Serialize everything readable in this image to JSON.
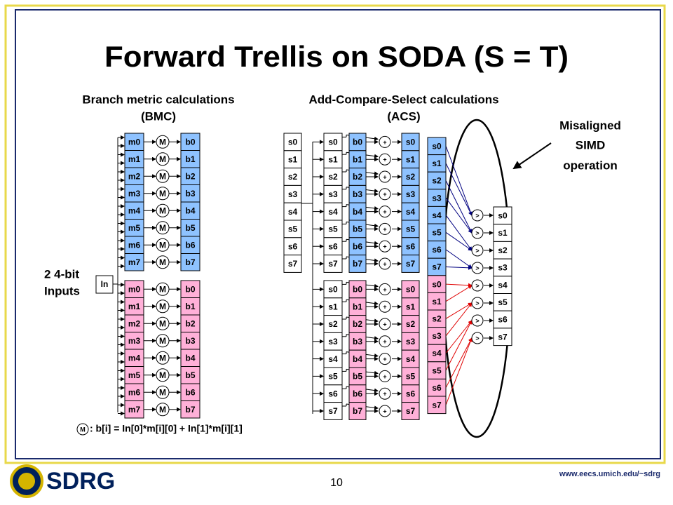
{
  "title": "Forward Trellis on SODA (S = T)",
  "bmc": {
    "heading": "Branch metric calculations",
    "subheading": "(BMC)",
    "input_label": [
      "2 4-bit",
      "Inputs"
    ],
    "in_box": "In",
    "op": "M",
    "m_top": [
      "m0",
      "m1",
      "m2",
      "m3",
      "m4",
      "m5",
      "m6",
      "m7"
    ],
    "b_top": [
      "b0",
      "b1",
      "b2",
      "b3",
      "b4",
      "b5",
      "b6",
      "b7"
    ],
    "m_bottom": [
      "m0",
      "m1",
      "m2",
      "m3",
      "m4",
      "m5",
      "m6",
      "m7"
    ],
    "b_bottom": [
      "b0",
      "b1",
      "b2",
      "b3",
      "b4",
      "b5",
      "b6",
      "b7"
    ]
  },
  "legend": {
    "symbol": "M",
    "formula": ": b[i] = In[0]*m[i][0] + In[1]*m[i][1]"
  },
  "acs": {
    "heading": "Add-Compare-Select calculations",
    "subheading": "(ACS)",
    "add_op": "+",
    "compare_op": ">",
    "s_in": [
      "s0",
      "s1",
      "s2",
      "s3",
      "s4",
      "s5",
      "s6",
      "s7"
    ],
    "top": {
      "s": [
        "s0",
        "s1",
        "s2",
        "s3",
        "s4",
        "s5",
        "s6",
        "s7"
      ],
      "b": [
        "b0",
        "b1",
        "b2",
        "b3",
        "b4",
        "b5",
        "b6",
        "b7"
      ],
      "out": [
        "s0",
        "s1",
        "s2",
        "s3",
        "s4",
        "s5",
        "s6",
        "s7"
      ]
    },
    "bottom": {
      "s": [
        "s0",
        "s1",
        "s2",
        "s3",
        "s4",
        "s5",
        "s6",
        "s7"
      ],
      "b": [
        "b0",
        "b1",
        "b2",
        "b3",
        "b4",
        "b5",
        "b6",
        "b7"
      ],
      "out": [
        "s0",
        "s1",
        "s2",
        "s3",
        "s4",
        "s5",
        "s6",
        "s7"
      ]
    },
    "merged": [
      "s0",
      "s1",
      "s2",
      "s3",
      "s4",
      "s5",
      "s6",
      "s7",
      "s0",
      "s1",
      "s2",
      "s3",
      "s4",
      "s5",
      "s6",
      "s7"
    ],
    "result": [
      "s0",
      "s1",
      "s2",
      "s3",
      "s4",
      "s5",
      "s6",
      "s7"
    ]
  },
  "callout": [
    "Misaligned",
    "SIMD",
    "operation"
  ],
  "logo": "SDRG",
  "page_number": "10",
  "url": "www.eecs.umich.edu/~sdrg"
}
